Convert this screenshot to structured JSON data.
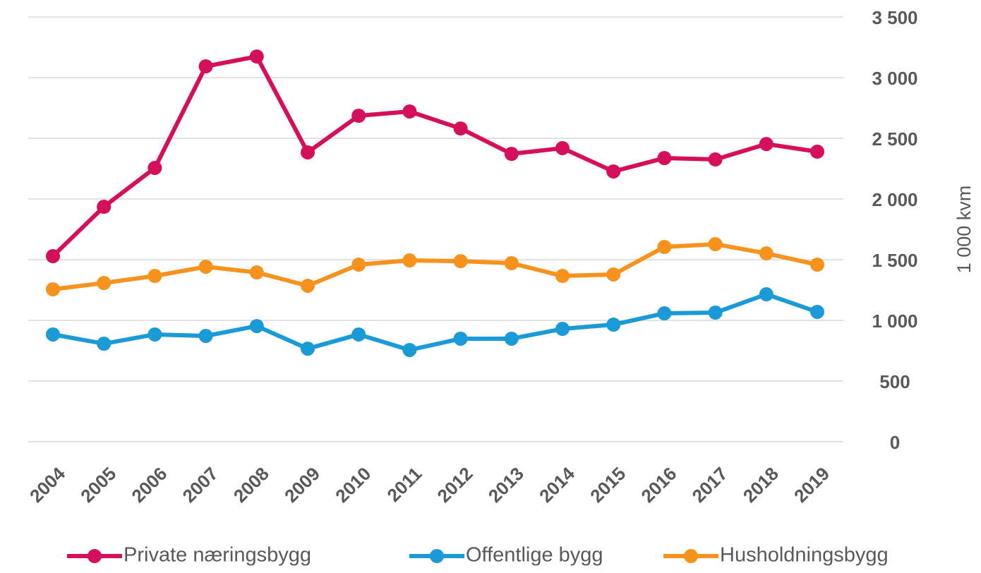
{
  "chart_data": {
    "type": "line",
    "y_label": "1 000 kvm",
    "categories": [
      "2004",
      "2005",
      "2006",
      "2007",
      "2008",
      "2009",
      "2010",
      "2011",
      "2012",
      "2013",
      "2014",
      "2015",
      "2016",
      "2017",
      "2018",
      "2019"
    ],
    "series": [
      {
        "name": "Private næringsbygg",
        "color": "#d50f5c",
        "values": [
          1529,
          1936,
          2256,
          3093,
          3174,
          2384,
          2686,
          2721,
          2581,
          2372,
          2419,
          2227,
          2337,
          2326,
          2453,
          2390
        ]
      },
      {
        "name": "Offentlige bygg",
        "color": "#1a9ad6",
        "values": [
          884,
          808,
          884,
          872,
          953,
          767,
          884,
          756,
          849,
          849,
          930,
          965,
          1058,
          1064,
          1215,
          1070
        ]
      },
      {
        "name": "Husholdningsbygg",
        "color": "#f7921c",
        "values": [
          1256,
          1308,
          1366,
          1442,
          1395,
          1285,
          1459,
          1494,
          1488,
          1471,
          1366,
          1378,
          1605,
          1628,
          1552,
          1459
        ]
      }
    ],
    "ylim": [
      0,
      3500
    ],
    "yticks": [
      0,
      500,
      {
        "value": 1000,
        "label": "1 000"
      },
      {
        "value": 1500,
        "label": "1 500"
      },
      {
        "value": 2000,
        "label": "2 000"
      },
      {
        "value": 2500,
        "label": "2 500"
      },
      {
        "value": 3000,
        "label": "3 000"
      },
      {
        "value": 3500,
        "label": "3 500"
      }
    ],
    "grid": true,
    "legend": "bottom"
  }
}
